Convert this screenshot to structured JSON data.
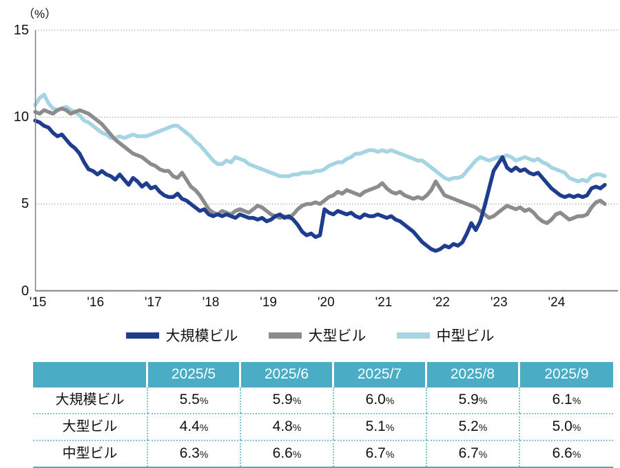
{
  "page": {
    "background": "#ffffff"
  },
  "chart": {
    "unit_label": "（%）",
    "y_ticks": [
      15,
      10,
      5,
      0
    ],
    "grid_color": "#9a9a9a",
    "axis_color": "#7f7f7f"
  },
  "chart_data": {
    "type": "line",
    "title": "",
    "ylabel": "（%）",
    "ylim": [
      0,
      15
    ],
    "grid": "horizontal-dotted",
    "legend_position": "bottom",
    "x_tick_labels": [
      "'15",
      "'16",
      "'17",
      "'18",
      "'19",
      "'20",
      "'21",
      "'22",
      "'23",
      "'24"
    ],
    "x_frequency": "monthly",
    "x_range": "2015/1 - 2025/9",
    "series": [
      {
        "name": "大規模ビル",
        "color": "#1f3d8f",
        "values": [
          9.8,
          9.7,
          9.5,
          9.4,
          9.1,
          8.9,
          9.0,
          8.7,
          8.4,
          8.2,
          7.9,
          7.4,
          7.0,
          6.9,
          6.7,
          6.9,
          6.7,
          6.6,
          6.4,
          6.7,
          6.4,
          6.1,
          6.5,
          6.3,
          6.0,
          6.2,
          5.9,
          6.0,
          5.7,
          5.5,
          5.4,
          5.4,
          5.6,
          5.3,
          5.2,
          5.0,
          4.8,
          4.6,
          4.7,
          4.4,
          4.3,
          4.4,
          4.3,
          4.4,
          4.3,
          4.2,
          4.4,
          4.3,
          4.2,
          4.2,
          4.1,
          4.2,
          4.0,
          4.1,
          4.3,
          4.4,
          4.2,
          4.3,
          4.1,
          3.8,
          3.4,
          3.2,
          3.3,
          3.1,
          3.2,
          4.7,
          4.5,
          4.4,
          4.6,
          4.5,
          4.4,
          4.5,
          4.3,
          4.2,
          4.4,
          4.3,
          4.3,
          4.4,
          4.3,
          4.2,
          4.3,
          4.1,
          4.0,
          3.8,
          3.6,
          3.4,
          3.1,
          2.8,
          2.6,
          2.4,
          2.3,
          2.4,
          2.6,
          2.5,
          2.7,
          2.6,
          2.8,
          3.3,
          3.9,
          3.5,
          4.0,
          4.9,
          5.9,
          6.9,
          7.3,
          7.7,
          7.1,
          6.9,
          7.1,
          6.9,
          7.0,
          6.8,
          6.7,
          6.8,
          6.5,
          6.2,
          5.9,
          5.7,
          5.5,
          5.4,
          5.5,
          5.4,
          5.5,
          5.4,
          5.5,
          5.9,
          6.0,
          5.9,
          6.1
        ]
      },
      {
        "name": "大型ビル",
        "color": "#8c8c8c",
        "values": [
          10.3,
          10.2,
          10.4,
          10.3,
          10.2,
          10.4,
          10.5,
          10.4,
          10.2,
          10.3,
          10.4,
          10.3,
          10.2,
          10.0,
          9.8,
          9.6,
          9.3,
          9.0,
          8.7,
          8.5,
          8.3,
          8.1,
          7.9,
          7.8,
          7.7,
          7.5,
          7.3,
          7.2,
          7.0,
          6.9,
          6.9,
          6.6,
          6.5,
          6.8,
          6.4,
          6.0,
          5.8,
          5.5,
          5.1,
          4.7,
          4.5,
          4.4,
          4.6,
          4.5,
          4.4,
          4.6,
          4.7,
          4.6,
          4.5,
          4.7,
          4.9,
          4.8,
          4.6,
          4.4,
          4.3,
          4.2,
          4.3,
          4.2,
          4.4,
          4.7,
          4.9,
          5.0,
          5.0,
          5.1,
          5.0,
          5.2,
          5.4,
          5.5,
          5.7,
          5.6,
          5.8,
          5.7,
          5.6,
          5.5,
          5.7,
          5.8,
          5.9,
          6.0,
          6.2,
          5.9,
          5.7,
          5.6,
          5.7,
          5.5,
          5.4,
          5.3,
          5.4,
          5.3,
          5.5,
          5.8,
          6.3,
          5.9,
          5.5,
          5.4,
          5.3,
          5.2,
          5.1,
          5.0,
          4.9,
          4.8,
          4.6,
          4.4,
          4.2,
          4.3,
          4.5,
          4.7,
          4.9,
          4.8,
          4.7,
          4.8,
          4.6,
          4.7,
          4.5,
          4.2,
          4.0,
          3.9,
          4.1,
          4.4,
          4.5,
          4.3,
          4.1,
          4.2,
          4.3,
          4.3,
          4.4,
          4.8,
          5.1,
          5.2,
          5.0
        ]
      },
      {
        "name": "中型ビル",
        "color": "#a5d5e5",
        "values": [
          10.7,
          11.1,
          11.3,
          10.8,
          10.5,
          10.4,
          10.5,
          10.6,
          10.4,
          10.3,
          10.1,
          9.8,
          9.7,
          9.5,
          9.3,
          9.1,
          9.0,
          8.8,
          8.8,
          8.9,
          8.8,
          8.9,
          9.0,
          8.9,
          8.9,
          8.9,
          9.0,
          9.1,
          9.2,
          9.3,
          9.4,
          9.5,
          9.5,
          9.3,
          9.1,
          8.9,
          8.6,
          8.4,
          8.1,
          7.8,
          7.5,
          7.3,
          7.3,
          7.5,
          7.4,
          7.7,
          7.6,
          7.5,
          7.3,
          7.2,
          7.1,
          7.0,
          6.9,
          6.8,
          6.7,
          6.6,
          6.6,
          6.6,
          6.7,
          6.7,
          6.8,
          6.8,
          6.8,
          6.9,
          6.9,
          7.0,
          7.2,
          7.3,
          7.4,
          7.4,
          7.6,
          7.7,
          7.9,
          7.9,
          8.0,
          8.1,
          8.1,
          8.0,
          8.1,
          8.0,
          8.1,
          8.0,
          7.9,
          7.8,
          7.7,
          7.6,
          7.5,
          7.5,
          7.3,
          7.1,
          6.9,
          6.7,
          6.5,
          6.4,
          6.5,
          6.5,
          6.6,
          6.9,
          7.2,
          7.5,
          7.7,
          7.6,
          7.5,
          7.6,
          7.7,
          7.7,
          7.8,
          7.7,
          7.5,
          7.6,
          7.7,
          7.6,
          7.5,
          7.6,
          7.4,
          7.3,
          7.1,
          7.0,
          6.9,
          6.8,
          6.5,
          6.4,
          6.3,
          6.4,
          6.3,
          6.6,
          6.7,
          6.7,
          6.6
        ]
      }
    ]
  },
  "table": {
    "header": [
      "",
      "2025/5",
      "2025/6",
      "2025/7",
      "2025/8",
      "2025/9"
    ],
    "unit": "%",
    "header_bg": "#4bacc6",
    "header_text_color": "#ffffff",
    "divider_color": "#7ec3d8",
    "rows": [
      {
        "label": "大規模ビル",
        "values": [
          "5.5",
          "5.9",
          "6.0",
          "5.9",
          "6.1"
        ]
      },
      {
        "label": "大型ビル",
        "values": [
          "4.4",
          "4.8",
          "5.1",
          "5.2",
          "5.0"
        ]
      },
      {
        "label": "中型ビル",
        "values": [
          "6.3",
          "6.6",
          "6.7",
          "6.7",
          "6.6"
        ]
      }
    ]
  }
}
